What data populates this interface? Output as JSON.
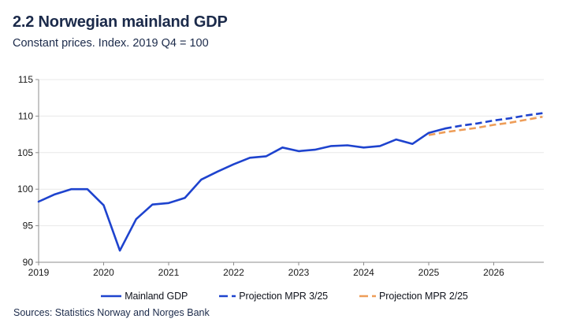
{
  "header": {
    "title": "2.2 Norwegian mainland GDP",
    "subtitle": "Constant prices. Index. 2019 Q4 = 100"
  },
  "footer": {
    "sources": "Sources: Statistics Norway and Norges Bank"
  },
  "theme": {
    "brand_navy": "#1b2a4a",
    "axis_color": "#8c8c8c",
    "grid_color": "#e8e8e8",
    "tick_label_color": "#1a1a1a"
  },
  "chart_data": {
    "type": "line",
    "title": "2.2 Norwegian mainland GDP",
    "subtitle": "Constant prices. Index. 2019 Q4 = 100",
    "xlabel": "",
    "ylabel": "",
    "grid": true,
    "legend_position": "bottom",
    "ylim": [
      90,
      115
    ],
    "y_ticks": [
      90,
      95,
      100,
      105,
      110,
      115
    ],
    "x_tick_labels": [
      "2019",
      "2020",
      "2021",
      "2022",
      "2023",
      "2024",
      "2025",
      "2026"
    ],
    "x_unit": "quarterly",
    "x_end": "2026 Q4",
    "series": [
      {
        "name": "Mainland GDP",
        "line_style": "solid",
        "color": "#1e43ce",
        "start_year": 2019,
        "start_quarter": 1,
        "values": [
          98.3,
          99.3,
          100,
          100,
          97.8,
          91.6,
          95.9,
          97.9,
          98.1,
          98.8,
          101.3,
          102.4,
          103.4,
          104.3,
          104.5,
          105.7,
          105.2,
          105.4,
          105.9,
          106,
          105.7,
          105.9,
          106.8,
          106.2,
          107.7,
          108.3
        ]
      },
      {
        "name": "Projection MPR 3/25",
        "line_style": "dashed",
        "color": "#1e43ce",
        "start_year": 2025,
        "start_quarter": 2,
        "values": [
          108.3,
          108.7,
          109,
          109.4,
          109.7,
          110.1,
          110.4
        ]
      },
      {
        "name": "Projection MPR 2/25",
        "line_style": "dashed",
        "color": "#ee9d58",
        "start_year": 2025,
        "start_quarter": 1,
        "values": [
          107.4,
          107.8,
          108.1,
          108.4,
          108.8,
          109.1,
          109.5,
          109.9
        ]
      }
    ]
  }
}
